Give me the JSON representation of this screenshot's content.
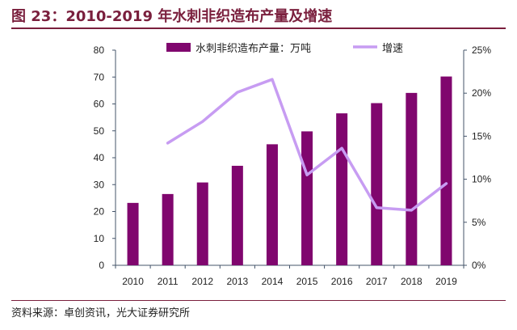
{
  "header": {
    "title": "图 23：2010-2019 年水刺非织造布产量及增速"
  },
  "footer": {
    "source": "资料来源：卓创资讯，光大证券研究所"
  },
  "colors": {
    "bar": "#80066e",
    "line": "#c79cf2",
    "axis": "#44546a",
    "title": "#7a1f3d"
  },
  "chart_data": {
    "type": "bar",
    "title": "",
    "categories": [
      "2010",
      "2011",
      "2012",
      "2013",
      "2014",
      "2015",
      "2016",
      "2017",
      "2018",
      "2019"
    ],
    "series": [
      {
        "name": "水刺非织造布产量：万吨",
        "type": "bar",
        "axis": "left",
        "values": [
          23.2,
          26.5,
          30.8,
          37.0,
          45.0,
          49.8,
          56.5,
          60.3,
          64.1,
          70.2
        ]
      },
      {
        "name": "增速",
        "type": "line",
        "axis": "right",
        "values": [
          null,
          14.2,
          16.7,
          20.1,
          21.6,
          10.5,
          13.6,
          6.7,
          6.4,
          9.5
        ]
      }
    ],
    "y_left": {
      "min": 0,
      "max": 80,
      "ticks": [
        "0",
        "10",
        "20",
        "30",
        "40",
        "50",
        "60",
        "70",
        "80"
      ]
    },
    "y_right": {
      "min": 0,
      "max": 25,
      "ticks": [
        "0%",
        "5%",
        "10%",
        "15%",
        "20%",
        "25%"
      ]
    },
    "grid": false,
    "legend_position": "top-center"
  }
}
